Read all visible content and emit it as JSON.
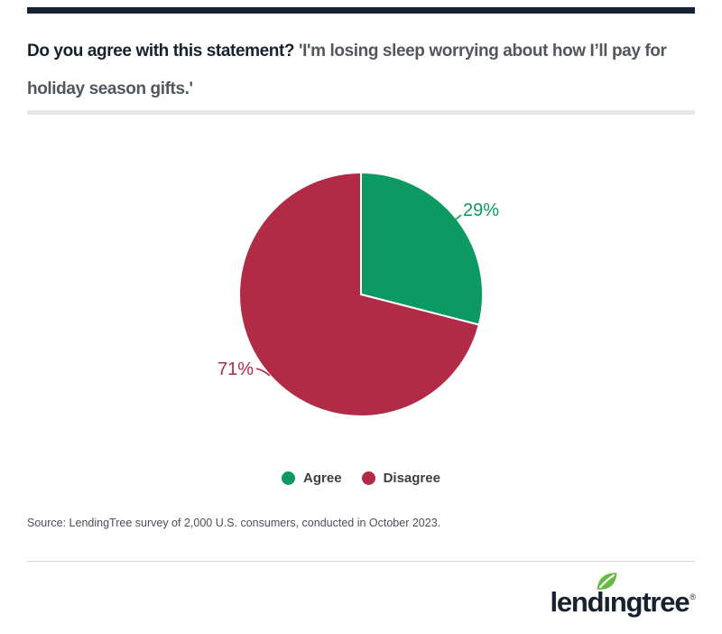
{
  "page": {
    "background": "#ffffff",
    "accent_bar_color": "#16222f"
  },
  "title": {
    "question": "Do you agree with this statement?",
    "quote": " 'I'm losing sleep worrying about how I’ll pay for holiday season gifts.'"
  },
  "chart_data": {
    "type": "pie",
    "title": "Do you agree with this statement? 'I'm losing sleep worrying about how I’ll pay for holiday season gifts.'",
    "labels": [
      "Agree",
      "Disagree"
    ],
    "values": [
      29,
      71
    ],
    "value_labels": [
      "29%",
      "71%"
    ],
    "colors": [
      "#0d9a62",
      "#b12b46"
    ],
    "start_angle_deg": 0,
    "direction": "clockwise",
    "legend_position": "bottom"
  },
  "source": {
    "text": "Source: LendingTree survey of 2,000 U.S. consumers, conducted in October 2023."
  },
  "logo": {
    "brand": "lendingtree",
    "registered_mark": "®",
    "text_color": "#16222f",
    "leaf_color": "#65bc45"
  }
}
